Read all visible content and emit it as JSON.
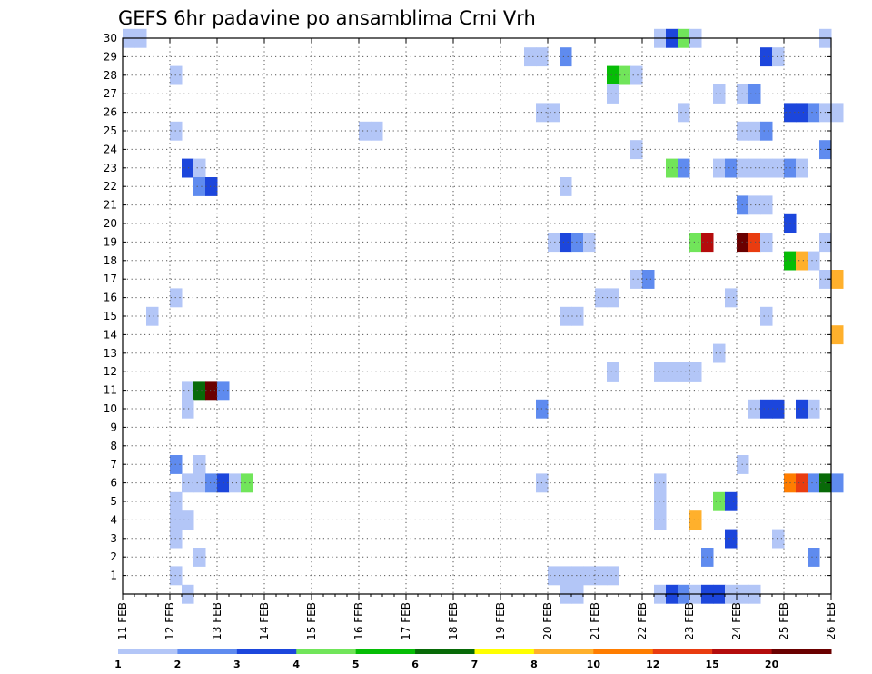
{
  "chart_data": {
    "type": "heatmap",
    "title": "GEFS 6hr padavine po ansamblima Crni Vrh",
    "xlabel": "",
    "ylabel": "",
    "grid": true,
    "legend_placement": "bottom",
    "x_tick_labels": [
      "11 FEB",
      "12 FEB",
      "13 FEB",
      "14 FEB",
      "15 FEB",
      "16 FEB",
      "17 FEB",
      "18 FEB",
      "19 FEB",
      "20 FEB",
      "21 FEB",
      "22 FEB",
      "23 FEB",
      "24 FEB",
      "25 FEB",
      "26 FEB"
    ],
    "y_tick_labels": [
      "1",
      "2",
      "3",
      "4",
      "5",
      "6",
      "7",
      "8",
      "9",
      "10",
      "11",
      "12",
      "13",
      "14",
      "15",
      "16",
      "17",
      "18",
      "19",
      "20",
      "21",
      "22",
      "23",
      "24",
      "25",
      "26",
      "27",
      "28",
      "29",
      "30"
    ],
    "x_range": [
      "11 FEB 00Z",
      "26 FEB 00Z"
    ],
    "x_step": "6h",
    "y_range": [
      0,
      30
    ],
    "legend": {
      "labels": [
        "1",
        "2",
        "3",
        "4",
        "5",
        "6",
        "7",
        "8",
        "10",
        "12",
        "15",
        "20"
      ],
      "colors": [
        "#b3c6f7",
        "#5f8bef",
        "#1c46dc",
        "#71e55a",
        "#06bd06",
        "#086a08",
        "#ffff00",
        "#ffb02c",
        "#ff7d00",
        "#e93c10",
        "#b40c0c",
        "#6a0000"
      ]
    },
    "colors_by_class": [
      "#b3c6f7",
      "#5f8bef",
      "#1c46dc",
      "#71e55a",
      "#06bd06",
      "#086a08",
      "#ffff00",
      "#ffb02c",
      "#ff7d00",
      "#e93c10",
      "#b40c0c",
      "#6a0000"
    ],
    "cells_format": "[member, period_index (6h steps from 11 FEB 00Z), legend_class_index]",
    "cells": [
      [
        30,
        0,
        0
      ],
      [
        30,
        1,
        0
      ],
      [
        30,
        45,
        0
      ],
      [
        30,
        46,
        2
      ],
      [
        30,
        47,
        3
      ],
      [
        30,
        48,
        0
      ],
      [
        30,
        59,
        0
      ],
      [
        29,
        34,
        0
      ],
      [
        29,
        35,
        0
      ],
      [
        29,
        37,
        1
      ],
      [
        29,
        54,
        2
      ],
      [
        29,
        55,
        0
      ],
      [
        28,
        4,
        0
      ],
      [
        28,
        41,
        4
      ],
      [
        28,
        42,
        3
      ],
      [
        28,
        43,
        0
      ],
      [
        27,
        41,
        0
      ],
      [
        27,
        50,
        0
      ],
      [
        27,
        52,
        0
      ],
      [
        27,
        53,
        1
      ],
      [
        26,
        35,
        0
      ],
      [
        26,
        36,
        0
      ],
      [
        26,
        47,
        0
      ],
      [
        26,
        56,
        2
      ],
      [
        26,
        57,
        2
      ],
      [
        26,
        58,
        1
      ],
      [
        26,
        59,
        0
      ],
      [
        26,
        60,
        0
      ],
      [
        25,
        4,
        0
      ],
      [
        25,
        20,
        0
      ],
      [
        25,
        21,
        0
      ],
      [
        25,
        52,
        0
      ],
      [
        25,
        53,
        0
      ],
      [
        25,
        54,
        1
      ],
      [
        24,
        43,
        0
      ],
      [
        24,
        59,
        1
      ],
      [
        23,
        5,
        2
      ],
      [
        23,
        6,
        0
      ],
      [
        23,
        46,
        3
      ],
      [
        23,
        47,
        1
      ],
      [
        23,
        50,
        0
      ],
      [
        23,
        51,
        1
      ],
      [
        23,
        52,
        0
      ],
      [
        23,
        53,
        0
      ],
      [
        23,
        54,
        0
      ],
      [
        23,
        55,
        0
      ],
      [
        23,
        56,
        1
      ],
      [
        23,
        57,
        0
      ],
      [
        22,
        6,
        1
      ],
      [
        22,
        7,
        2
      ],
      [
        22,
        37,
        0
      ],
      [
        21,
        52,
        1
      ],
      [
        21,
        53,
        0
      ],
      [
        21,
        54,
        0
      ],
      [
        20,
        56,
        2
      ],
      [
        19,
        36,
        0
      ],
      [
        19,
        37,
        2
      ],
      [
        19,
        38,
        1
      ],
      [
        19,
        39,
        0
      ],
      [
        19,
        48,
        3
      ],
      [
        19,
        49,
        10
      ],
      [
        19,
        52,
        11
      ],
      [
        19,
        53,
        9
      ],
      [
        19,
        54,
        0
      ],
      [
        19,
        59,
        0
      ],
      [
        18,
        56,
        4
      ],
      [
        18,
        57,
        7
      ],
      [
        18,
        58,
        0
      ],
      [
        17,
        43,
        0
      ],
      [
        17,
        44,
        1
      ],
      [
        17,
        59,
        0
      ],
      [
        17,
        60,
        7
      ],
      [
        16,
        4,
        0
      ],
      [
        16,
        40,
        0
      ],
      [
        16,
        41,
        0
      ],
      [
        16,
        51,
        0
      ],
      [
        15,
        2,
        0
      ],
      [
        15,
        37,
        0
      ],
      [
        15,
        38,
        0
      ],
      [
        15,
        54,
        0
      ],
      [
        14,
        60,
        7
      ],
      [
        13,
        50,
        0
      ],
      [
        12,
        41,
        0
      ],
      [
        12,
        45,
        0
      ],
      [
        12,
        46,
        0
      ],
      [
        12,
        47,
        0
      ],
      [
        12,
        48,
        0
      ],
      [
        11,
        5,
        0
      ],
      [
        11,
        6,
        5
      ],
      [
        11,
        7,
        11
      ],
      [
        11,
        8,
        1
      ],
      [
        10,
        5,
        0
      ],
      [
        10,
        35,
        1
      ],
      [
        10,
        53,
        0
      ],
      [
        10,
        54,
        2
      ],
      [
        10,
        55,
        2
      ],
      [
        10,
        57,
        2
      ],
      [
        10,
        58,
        0
      ],
      [
        7,
        4,
        1
      ],
      [
        7,
        6,
        0
      ],
      [
        7,
        52,
        0
      ],
      [
        6,
        5,
        0
      ],
      [
        6,
        6,
        0
      ],
      [
        6,
        7,
        1
      ],
      [
        6,
        8,
        2
      ],
      [
        6,
        9,
        0
      ],
      [
        6,
        10,
        3
      ],
      [
        6,
        35,
        0
      ],
      [
        6,
        45,
        0
      ],
      [
        6,
        56,
        8
      ],
      [
        6,
        57,
        9
      ],
      [
        6,
        58,
        1
      ],
      [
        6,
        59,
        5
      ],
      [
        6,
        60,
        1
      ],
      [
        5,
        4,
        0
      ],
      [
        5,
        45,
        0
      ],
      [
        5,
        50,
        3
      ],
      [
        5,
        51,
        2
      ],
      [
        4,
        4,
        0
      ],
      [
        4,
        5,
        0
      ],
      [
        4,
        45,
        0
      ],
      [
        4,
        48,
        7
      ],
      [
        3,
        4,
        0
      ],
      [
        3,
        51,
        2
      ],
      [
        3,
        55,
        0
      ],
      [
        2,
        6,
        0
      ],
      [
        2,
        49,
        1
      ],
      [
        2,
        58,
        1
      ],
      [
        1,
        4,
        0
      ],
      [
        1,
        36,
        0
      ],
      [
        1,
        37,
        0
      ],
      [
        1,
        38,
        0
      ],
      [
        1,
        39,
        0
      ],
      [
        1,
        40,
        0
      ],
      [
        1,
        41,
        0
      ],
      [
        0,
        5,
        0
      ],
      [
        0,
        37,
        0
      ],
      [
        0,
        38,
        0
      ],
      [
        0,
        45,
        0
      ],
      [
        0,
        46,
        2
      ],
      [
        0,
        47,
        1
      ],
      [
        0,
        48,
        0
      ],
      [
        0,
        49,
        2
      ],
      [
        0,
        50,
        2
      ],
      [
        0,
        51,
        0
      ],
      [
        0,
        52,
        0
      ],
      [
        0,
        53,
        0
      ]
    ]
  }
}
